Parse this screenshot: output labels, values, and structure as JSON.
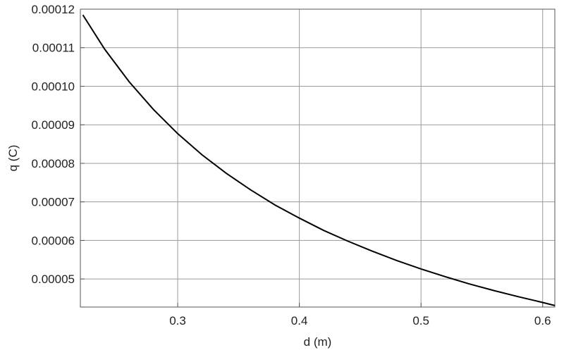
{
  "chart_data": {
    "type": "line",
    "xlabel": "d (m)",
    "ylabel": "q (C)",
    "xlim": [
      0.22,
      0.61
    ],
    "ylim": [
      4.272e-05,
      0.00012
    ],
    "grid": true,
    "x_ticks": [
      0.3,
      0.4,
      0.5,
      0.6
    ],
    "x_tick_labels": [
      "0.3",
      "0.4",
      "0.5",
      "0.6"
    ],
    "y_ticks": [
      5e-05,
      6e-05,
      7e-05,
      8e-05,
      9e-05,
      0.0001,
      0.00011,
      0.00012
    ],
    "y_tick_labels": [
      "0.00005",
      "0.00006",
      "0.00007",
      "0.00008",
      "0.00009",
      "0.00010",
      "0.00011",
      "0.00012"
    ],
    "series": [
      {
        "color": "#000000",
        "x": [
          0.222,
          0.24,
          0.26,
          0.28,
          0.3,
          0.32,
          0.34,
          0.36,
          0.38,
          0.4,
          0.42,
          0.44,
          0.46,
          0.48,
          0.5,
          0.52,
          0.54,
          0.56,
          0.58,
          0.6,
          0.61
        ],
        "y": [
          0.0001185,
          0.0001096,
          0.0001012,
          9.4e-05,
          8.77e-05,
          8.22e-05,
          7.74e-05,
          7.31e-05,
          6.92e-05,
          6.58e-05,
          6.26e-05,
          5.98e-05,
          5.72e-05,
          5.48e-05,
          5.26e-05,
          5.06e-05,
          4.87e-05,
          4.7e-05,
          4.54e-05,
          4.39e-05,
          4.31e-05
        ]
      }
    ]
  }
}
